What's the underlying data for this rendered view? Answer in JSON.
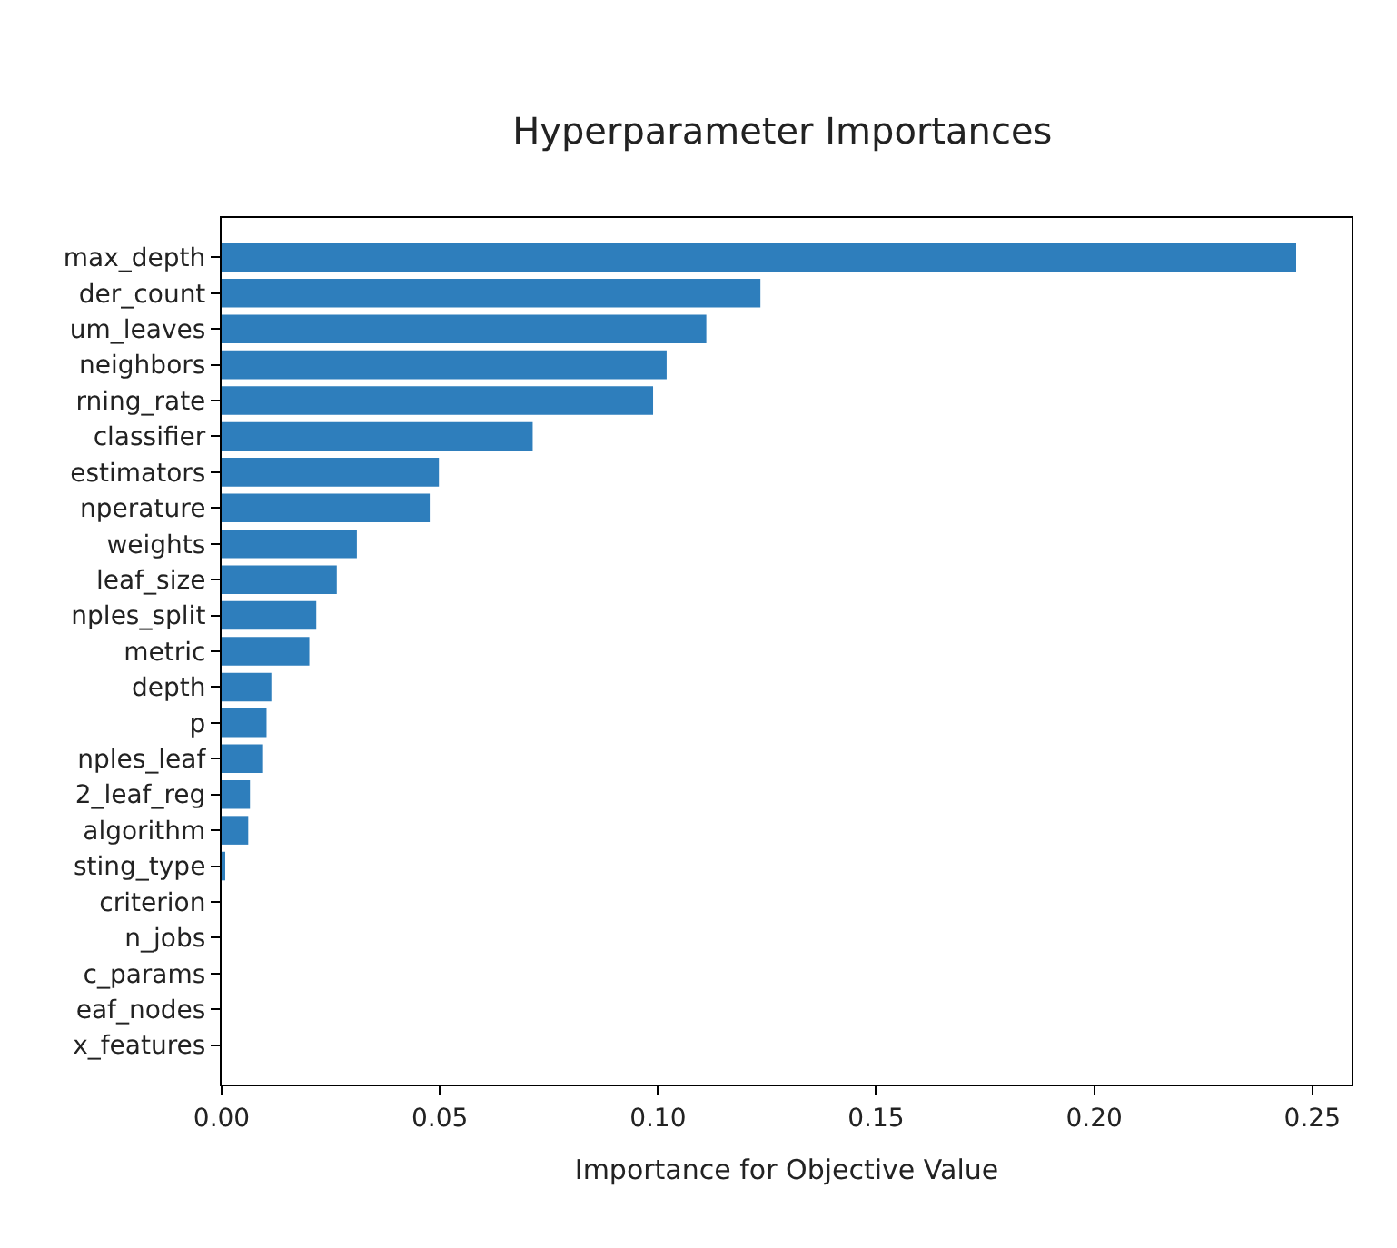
{
  "chart_data": {
    "type": "bar",
    "orientation": "horizontal",
    "title": "Hyperparameter Importances",
    "xlabel": "Importance for Objective Value",
    "categories": [
      "max_depth",
      "der_count",
      "um_leaves",
      "neighbors",
      "rning_rate",
      "classifier",
      "estimators",
      "nperature",
      "weights",
      "leaf_size",
      "nples_split",
      "metric",
      "depth",
      "p",
      "nples_leaf",
      "2_leaf_reg",
      "algorithm",
      "sting_type",
      "criterion",
      "n_jobs",
      "c_params",
      "eaf_nodes",
      "x_features"
    ],
    "values": [
      0.2463,
      0.1235,
      0.1111,
      0.102,
      0.0989,
      0.0713,
      0.0498,
      0.0477,
      0.031,
      0.0264,
      0.0217,
      0.0201,
      0.0114,
      0.0103,
      0.0093,
      0.0065,
      0.0061,
      0.0008,
      0,
      0,
      0,
      0,
      0
    ],
    "color": "#2e7ebc",
    "xlim": [
      0,
      0.259
    ],
    "xticks": [
      {
        "value": 0,
        "label": "0.00"
      },
      {
        "value": 0.05,
        "label": "0.05"
      },
      {
        "value": 0.1,
        "label": "0.10"
      },
      {
        "value": 0.15,
        "label": "0.15"
      },
      {
        "value": 0.2,
        "label": "0.20"
      },
      {
        "value": 0.25,
        "label": "0.25"
      }
    ]
  }
}
